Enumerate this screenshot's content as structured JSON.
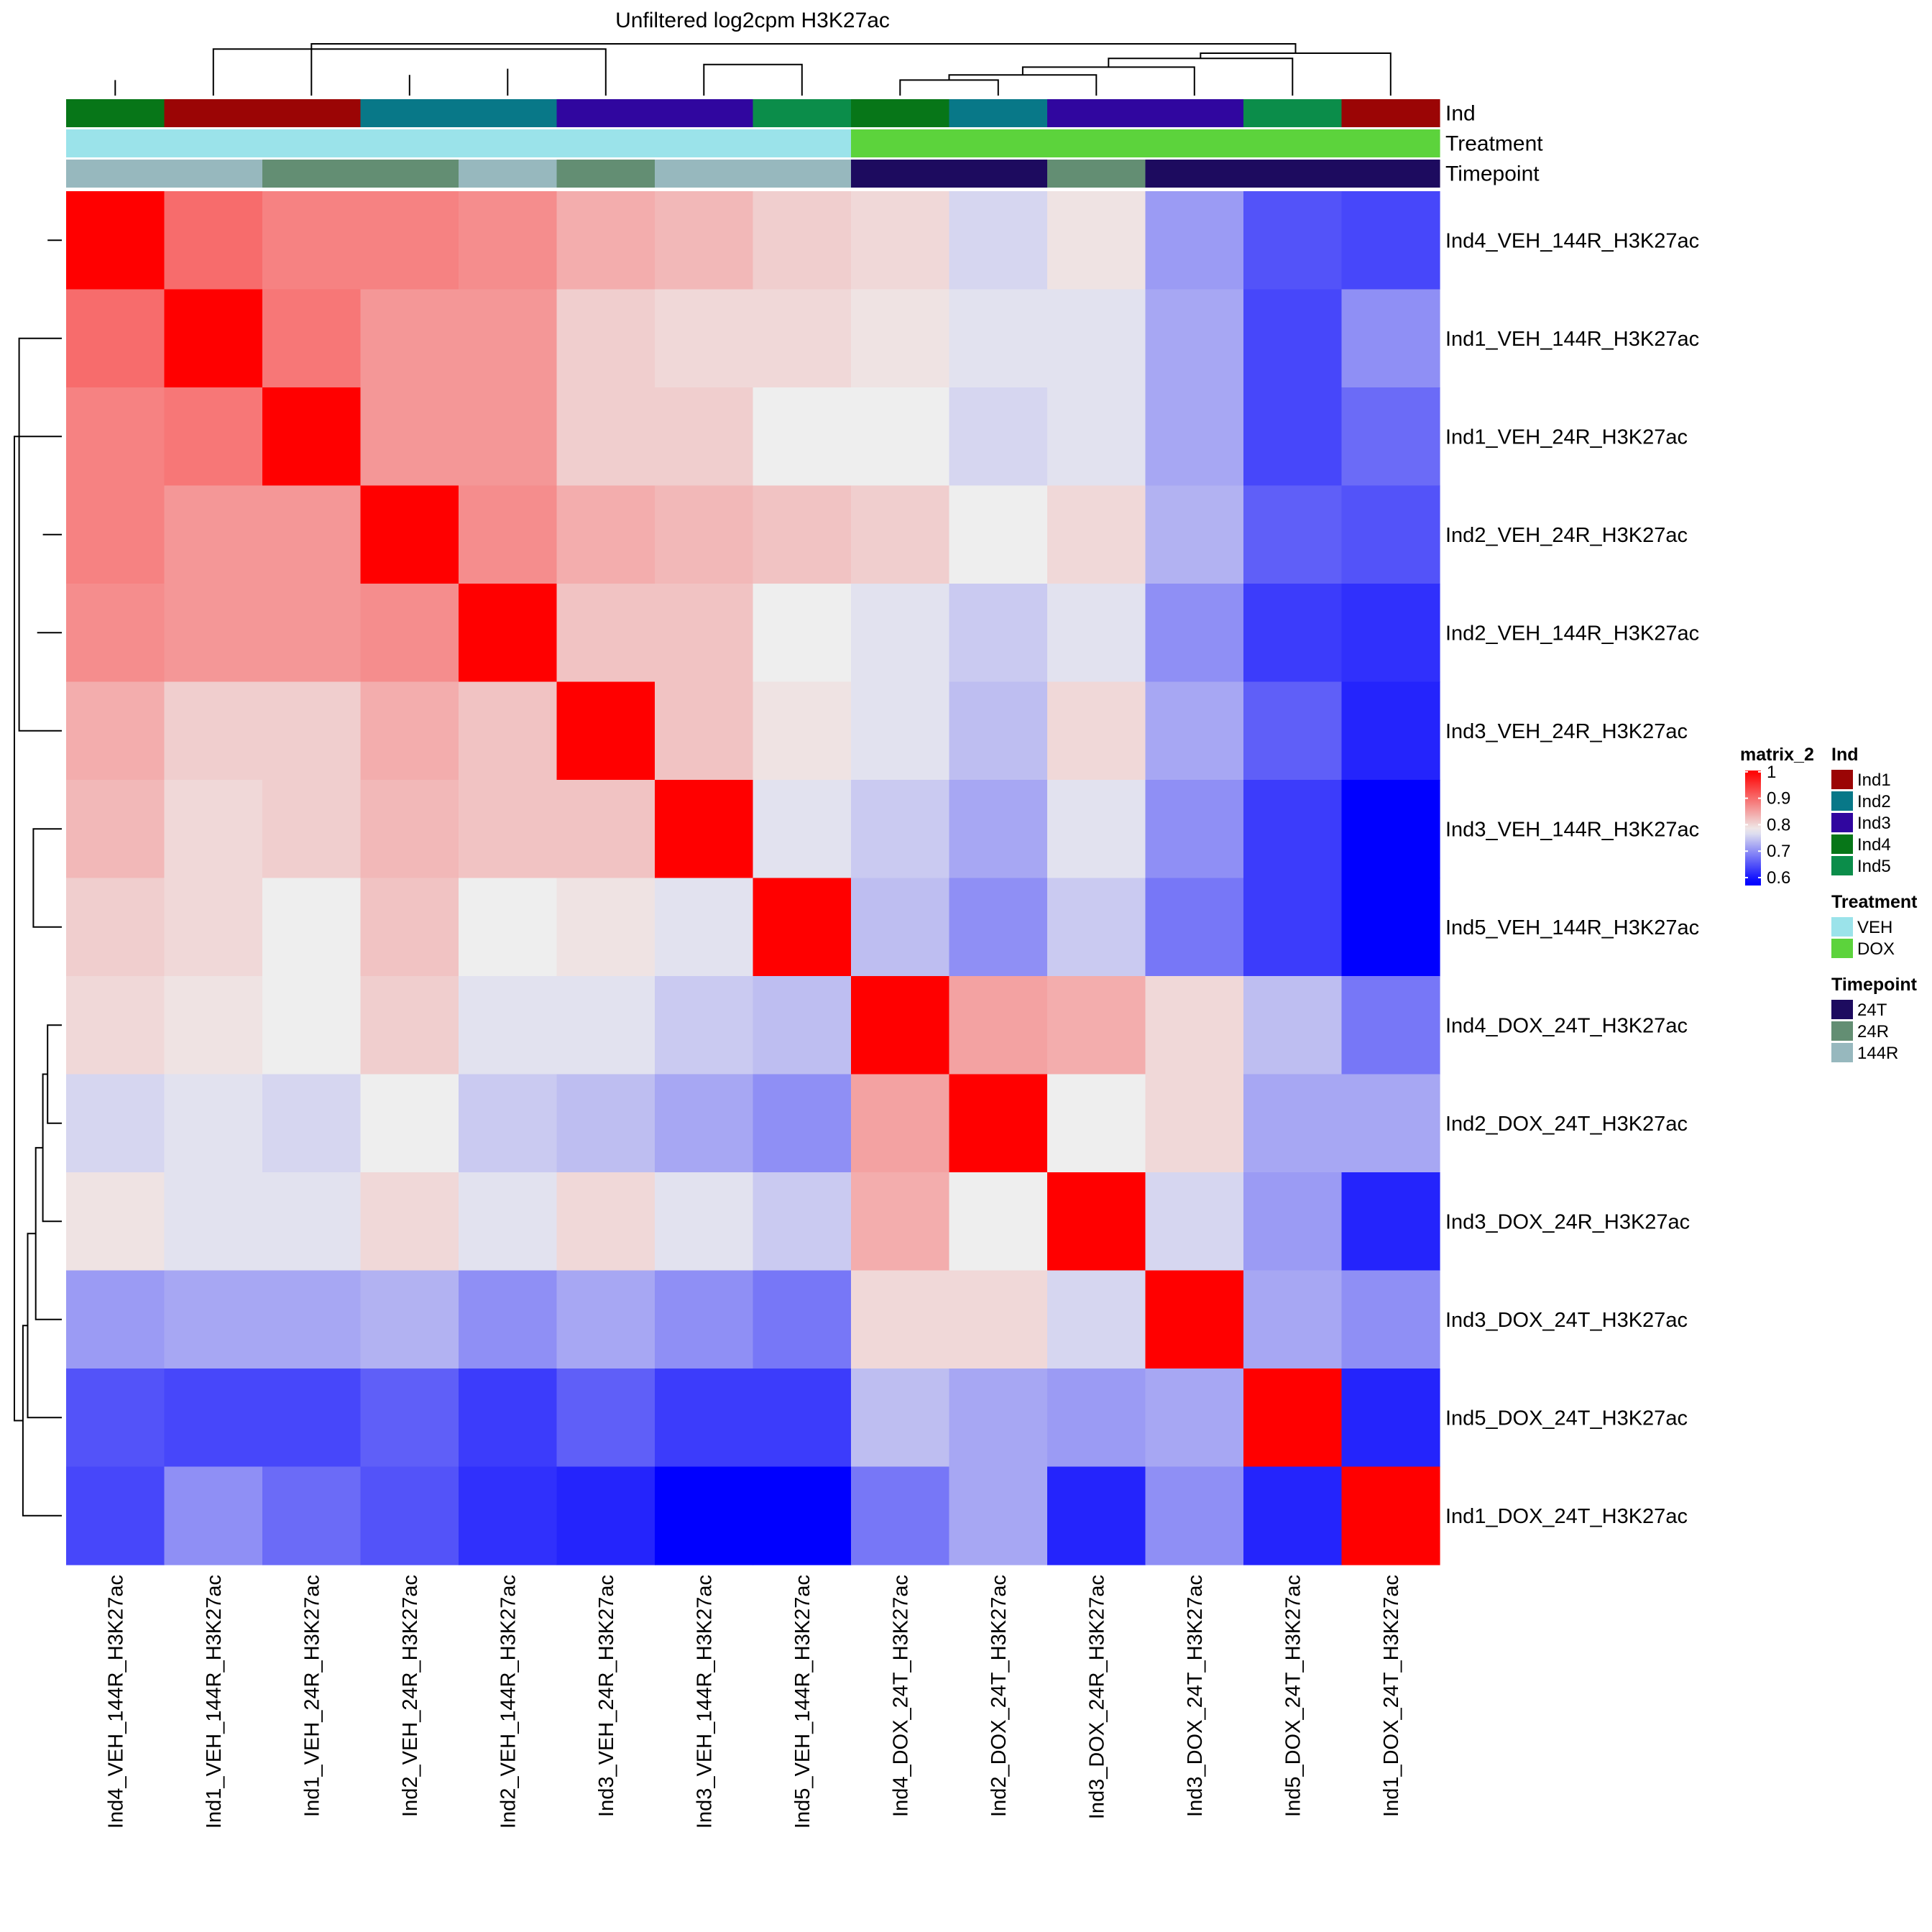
{
  "chart_data": {
    "type": "heatmap",
    "title": "Unfiltered log2cpm H3K27ac",
    "samples": [
      "Ind4_VEH_144R_H3K27ac",
      "Ind1_VEH_144R_H3K27ac",
      "Ind1_VEH_24R_H3K27ac",
      "Ind2_VEH_24R_H3K27ac",
      "Ind2_VEH_144R_H3K27ac",
      "Ind3_VEH_24R_H3K27ac",
      "Ind3_VEH_144R_H3K27ac",
      "Ind5_VEH_144R_H3K27ac",
      "Ind4_DOX_24T_H3K27ac",
      "Ind2_DOX_24T_H3K27ac",
      "Ind3_DOX_24R_H3K27ac",
      "Ind3_DOX_24T_H3K27ac",
      "Ind5_DOX_24T_H3K27ac",
      "Ind1_DOX_24T_H3K27ac"
    ],
    "matrix": [
      [
        1.0,
        0.9,
        0.88,
        0.88,
        0.87,
        0.84,
        0.83,
        0.81,
        0.8,
        0.76,
        0.79,
        0.71,
        0.65,
        0.64
      ],
      [
        0.9,
        1.0,
        0.89,
        0.86,
        0.86,
        0.81,
        0.8,
        0.8,
        0.79,
        0.77,
        0.77,
        0.72,
        0.64,
        0.7
      ],
      [
        0.88,
        0.89,
        1.0,
        0.86,
        0.86,
        0.81,
        0.81,
        0.78,
        0.78,
        0.76,
        0.77,
        0.72,
        0.64,
        0.67
      ],
      [
        0.88,
        0.86,
        0.86,
        1.0,
        0.87,
        0.84,
        0.83,
        0.82,
        0.81,
        0.78,
        0.8,
        0.73,
        0.66,
        0.65
      ],
      [
        0.87,
        0.86,
        0.86,
        0.87,
        1.0,
        0.82,
        0.82,
        0.78,
        0.77,
        0.75,
        0.77,
        0.7,
        0.63,
        0.62
      ],
      [
        0.84,
        0.81,
        0.81,
        0.84,
        0.82,
        1.0,
        0.82,
        0.79,
        0.77,
        0.74,
        0.8,
        0.72,
        0.66,
        0.61
      ],
      [
        0.83,
        0.8,
        0.81,
        0.83,
        0.82,
        0.82,
        1.0,
        0.77,
        0.75,
        0.72,
        0.77,
        0.7,
        0.63,
        0.58
      ],
      [
        0.81,
        0.8,
        0.78,
        0.82,
        0.78,
        0.79,
        0.77,
        1.0,
        0.74,
        0.7,
        0.75,
        0.68,
        0.63,
        0.58
      ],
      [
        0.8,
        0.79,
        0.78,
        0.81,
        0.77,
        0.77,
        0.75,
        0.74,
        1.0,
        0.85,
        0.84,
        0.8,
        0.74,
        0.68
      ],
      [
        0.76,
        0.77,
        0.76,
        0.78,
        0.75,
        0.74,
        0.72,
        0.7,
        0.85,
        1.0,
        0.78,
        0.8,
        0.72,
        0.72
      ],
      [
        0.79,
        0.77,
        0.77,
        0.8,
        0.77,
        0.8,
        0.77,
        0.75,
        0.84,
        0.78,
        1.0,
        0.76,
        0.71,
        0.61
      ],
      [
        0.71,
        0.72,
        0.72,
        0.73,
        0.7,
        0.72,
        0.7,
        0.68,
        0.8,
        0.8,
        0.76,
        1.0,
        0.72,
        0.7
      ],
      [
        0.65,
        0.64,
        0.64,
        0.66,
        0.63,
        0.66,
        0.63,
        0.63,
        0.74,
        0.72,
        0.71,
        0.72,
        1.0,
        0.61
      ],
      [
        0.64,
        0.7,
        0.67,
        0.65,
        0.62,
        0.61,
        0.58,
        0.58,
        0.68,
        0.72,
        0.61,
        0.7,
        0.61,
        1.0
      ]
    ],
    "color_scale": {
      "name": "matrix_2",
      "low_value": 0.58,
      "low_color": "#0000ff",
      "mid_value": 0.78,
      "mid_color": "#eeeeee",
      "high_value": 1.0,
      "high_color": "#ff0000",
      "legend_ticks": [
        "1",
        "0.9",
        "0.8",
        "0.7",
        "0.6"
      ],
      "legend_tick_values": [
        1.0,
        0.9,
        0.8,
        0.7,
        0.6
      ]
    },
    "annotations": {
      "Ind": [
        "Ind4",
        "Ind1",
        "Ind1",
        "Ind2",
        "Ind2",
        "Ind3",
        "Ind3",
        "Ind5",
        "Ind4",
        "Ind2",
        "Ind3",
        "Ind3",
        "Ind5",
        "Ind1"
      ],
      "Treatment": [
        "VEH",
        "VEH",
        "VEH",
        "VEH",
        "VEH",
        "VEH",
        "VEH",
        "VEH",
        "DOX",
        "DOX",
        "DOX",
        "DOX",
        "DOX",
        "DOX"
      ],
      "Timepoint": [
        "144R",
        "144R",
        "24R",
        "24R",
        "144R",
        "24R",
        "144R",
        "144R",
        "24T",
        "24T",
        "24R",
        "24T",
        "24T",
        "24T"
      ]
    },
    "annotation_tracks": [
      "Ind",
      "Treatment",
      "Timepoint"
    ],
    "legends": {
      "Ind": {
        "title": "Ind",
        "levels": [
          "Ind1",
          "Ind2",
          "Ind3",
          "Ind4",
          "Ind5"
        ],
        "colors": [
          "#9b0505",
          "#087888",
          "#30069f",
          "#077618",
          "#0b8d4a"
        ]
      },
      "Treatment": {
        "title": "Treatment",
        "levels": [
          "VEH",
          "DOX"
        ],
        "colors": [
          "#9be3ea",
          "#5cd33c"
        ]
      },
      "Timepoint": {
        "title": "Timepoint",
        "levels": [
          "24T",
          "24R",
          "144R"
        ],
        "colors": [
          "#1d0b5f",
          "#638e73",
          "#97b8be"
        ]
      }
    },
    "dendrogram": {
      "merges": [
        [
          2,
          3,
          0.2
        ],
        [
          4,
          5,
          0.15
        ],
        [
          -1,
          1,
          0.3
        ],
        [
          6,
          7,
          0.2
        ],
        [
          -4,
          5,
          0.4
        ],
        [
          -5,
          6,
          0.52
        ],
        [
          -7,
          -8,
          0.6
        ],
        [
          -9,
          -10,
          0.3
        ],
        [
          -11,
          8,
          0.4
        ],
        [
          -12,
          9,
          0.55
        ],
        [
          -13,
          10,
          0.72
        ],
        [
          -14,
          11,
          0.82
        ],
        [
          -6,
          -2,
          0.9
        ],
        [
          -3,
          12,
          1.0
        ]
      ]
    }
  }
}
